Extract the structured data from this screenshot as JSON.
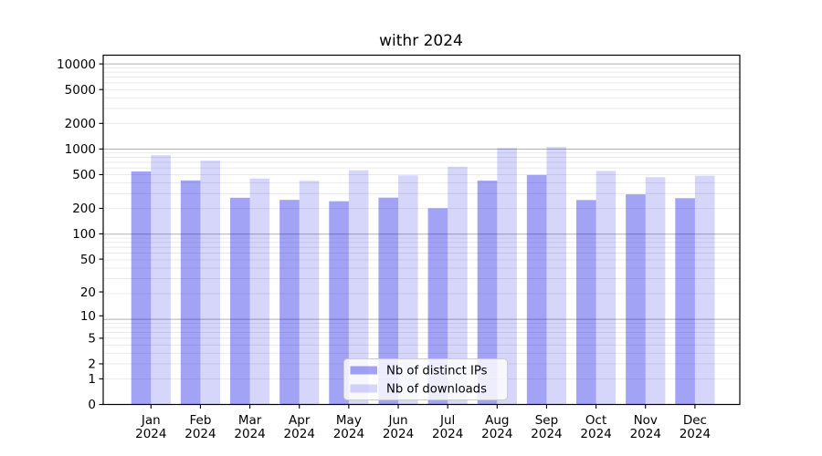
{
  "chart_data": {
    "type": "bar",
    "title": "withr 2024",
    "categories": [
      "Jan",
      "Feb",
      "Mar",
      "Apr",
      "May",
      "Jun",
      "Jul",
      "Aug",
      "Sep",
      "Oct",
      "Nov",
      "Dec"
    ],
    "xtick_year_line": "2024",
    "series": [
      {
        "name": "Nb of distinct IPs",
        "values": [
          545,
          427,
          267,
          252,
          243,
          268,
          201,
          425,
          495,
          251,
          293,
          264
        ],
        "color": "#0000e6",
        "opacity": 0.36
      },
      {
        "name": "Nb of downloads",
        "values": [
          845,
          730,
          450,
          423,
          563,
          490,
          620,
          1030,
          1060,
          553,
          467,
          486
        ],
        "color": "#0000e6",
        "opacity": 0.16
      }
    ],
    "xlabel": "",
    "ylabel": "",
    "yscale": "log1p",
    "yticks": [
      0,
      1,
      2,
      5,
      10,
      20,
      50,
      100,
      200,
      500,
      1000,
      2000,
      5000,
      10000
    ],
    "ylim": [
      0,
      12600
    ],
    "grid": {
      "on": true,
      "major_color": "#b0b0b0",
      "minor_color": "#e8e8e8"
    },
    "legend": {
      "position": "lower center",
      "frame_color": "#cccccc",
      "frame_fill": "#ffffff"
    },
    "spine_color": "#000000"
  }
}
